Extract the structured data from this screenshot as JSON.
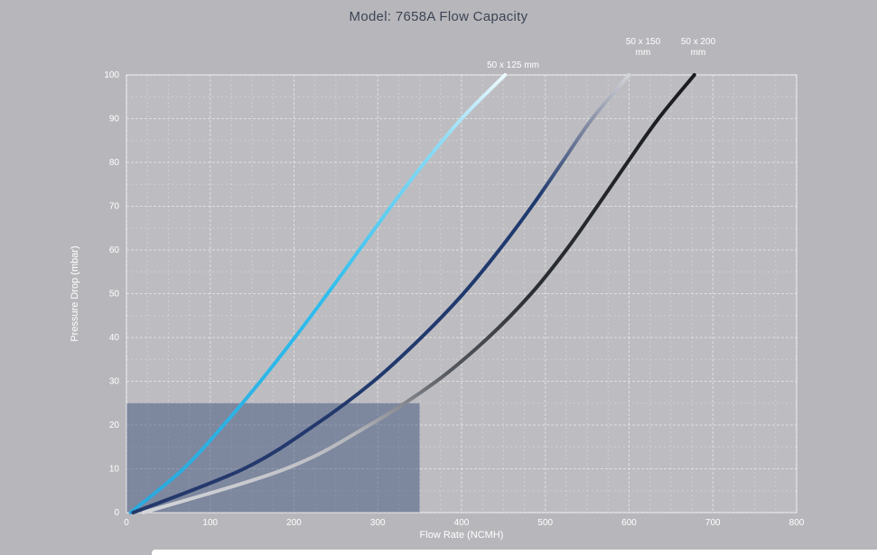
{
  "page": {
    "background": "#b7b7bb",
    "title_color": "#3d4454",
    "text_color": "#ffffff"
  },
  "chart_data": {
    "type": "line",
    "title": "Model: 7658A Flow Capacity",
    "xlabel": "Flow Rate (NCMH)",
    "ylabel": "Pressure Drop (mbar)",
    "xlim": [
      0,
      800
    ],
    "ylim": [
      0,
      100
    ],
    "x_ticks": [
      0,
      100,
      200,
      300,
      400,
      500,
      600,
      700,
      800
    ],
    "y_ticks": [
      0,
      10,
      20,
      30,
      40,
      50,
      60,
      70,
      80,
      90,
      100
    ],
    "grid": {
      "style": "dashed",
      "x_minor_step": 25,
      "y_minor_step": 5
    },
    "legend_position": "curve-end-labels-top",
    "pressure_points": [
      0,
      10,
      20,
      30,
      40,
      50,
      60,
      70,
      80,
      90,
      100
    ],
    "series": [
      {
        "name": "50 x 125 mm",
        "flow_values": [
          5,
          68,
          116,
          160,
          201,
          240,
          278,
          316,
          356,
          400,
          452
        ],
        "label_lines": [
          "50 x 125 mm"
        ],
        "label_x": 568,
        "label_y": 75,
        "gradient": [
          {
            "offset": 0,
            "color": "#2aa9dd"
          },
          {
            "offset": 0.5,
            "color": "#2fbeee"
          },
          {
            "offset": 0.85,
            "color": "#8edcf6"
          },
          {
            "offset": 1,
            "color": "#eefafe"
          }
        ]
      },
      {
        "name": "50 x 150 mm",
        "flow_values": [
          8,
          140,
          225,
          295,
          352,
          402,
          445,
          484,
          520,
          556,
          600
        ],
        "label_lines": [
          "50 x 150",
          "mm"
        ],
        "label_x": 712,
        "label_y": 49,
        "gradient": [
          {
            "offset": 0,
            "color": "#24386b"
          },
          {
            "offset": 0.72,
            "color": "#1f3a6f"
          },
          {
            "offset": 0.9,
            "color": "#8c93a8"
          },
          {
            "offset": 1,
            "color": "#d3d5da"
          }
        ]
      },
      {
        "name": "50 x 200 mm",
        "flow_values": [
          20,
          190,
          290,
          370,
          432,
          483,
          525,
          562,
          598,
          635,
          678
        ],
        "label_lines": [
          "50 x 200",
          "mm"
        ],
        "label_x": 773,
        "label_y": 49,
        "gradient": [
          {
            "offset": 0,
            "color": "#d4d6da"
          },
          {
            "offset": 0.18,
            "color": "#b4b6bb"
          },
          {
            "offset": 0.32,
            "color": "#55585f"
          },
          {
            "offset": 0.5,
            "color": "#2b2e34"
          },
          {
            "offset": 1,
            "color": "#191b1f"
          }
        ]
      }
    ],
    "highlight_region": {
      "x_range": [
        0,
        350
      ],
      "y_range": [
        0,
        25
      ],
      "fill": "rgba(47, 68, 116, 0.45)"
    }
  }
}
